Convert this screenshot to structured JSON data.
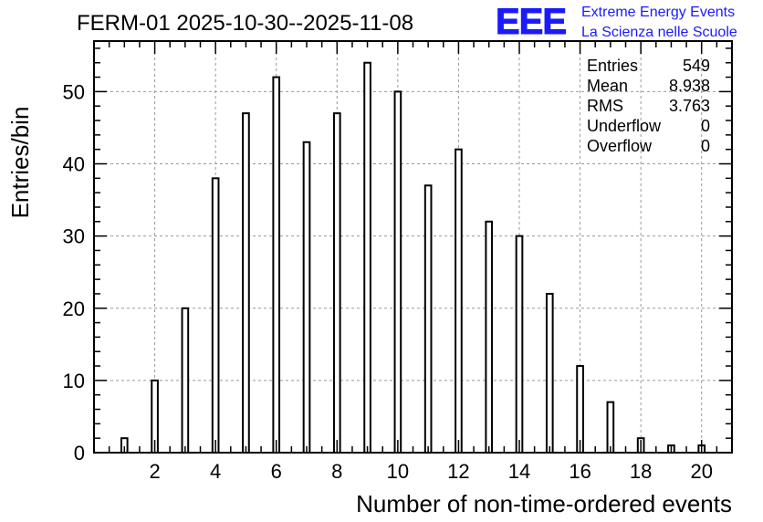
{
  "chart_data": {
    "type": "bar",
    "title": "FERM-01 2025-10-30--2025-11-08",
    "xlabel": "Number of non-time-ordered events",
    "ylabel": "Entries/bin",
    "x": [
      1,
      2,
      3,
      4,
      5,
      6,
      7,
      8,
      9,
      10,
      11,
      12,
      13,
      14,
      15,
      16,
      17,
      18,
      19,
      20
    ],
    "values": [
      2,
      10,
      20,
      38,
      47,
      52,
      43,
      47,
      54,
      50,
      37,
      42,
      32,
      30,
      22,
      12,
      7,
      2,
      1,
      1
    ],
    "xlim": [
      0,
      21
    ],
    "ylim": [
      0,
      57
    ],
    "xticks": [
      2,
      4,
      6,
      8,
      10,
      12,
      14,
      16,
      18,
      20
    ],
    "yticks": [
      0,
      10,
      20,
      30,
      40,
      50
    ],
    "grid": true,
    "stats": {
      "rows": [
        {
          "label": "Entries",
          "value": "549"
        },
        {
          "label": "Mean",
          "value": "8.938"
        },
        {
          "label": "RMS",
          "value": "3.763"
        },
        {
          "label": "Underflow",
          "value": "0"
        },
        {
          "label": "Overflow",
          "value": "0"
        }
      ]
    }
  },
  "logo": {
    "mark": "EEE",
    "line1": "Extreme Energy Events",
    "line2": "La Scienza nelle Scuole",
    "color": "#1a1aff"
  }
}
